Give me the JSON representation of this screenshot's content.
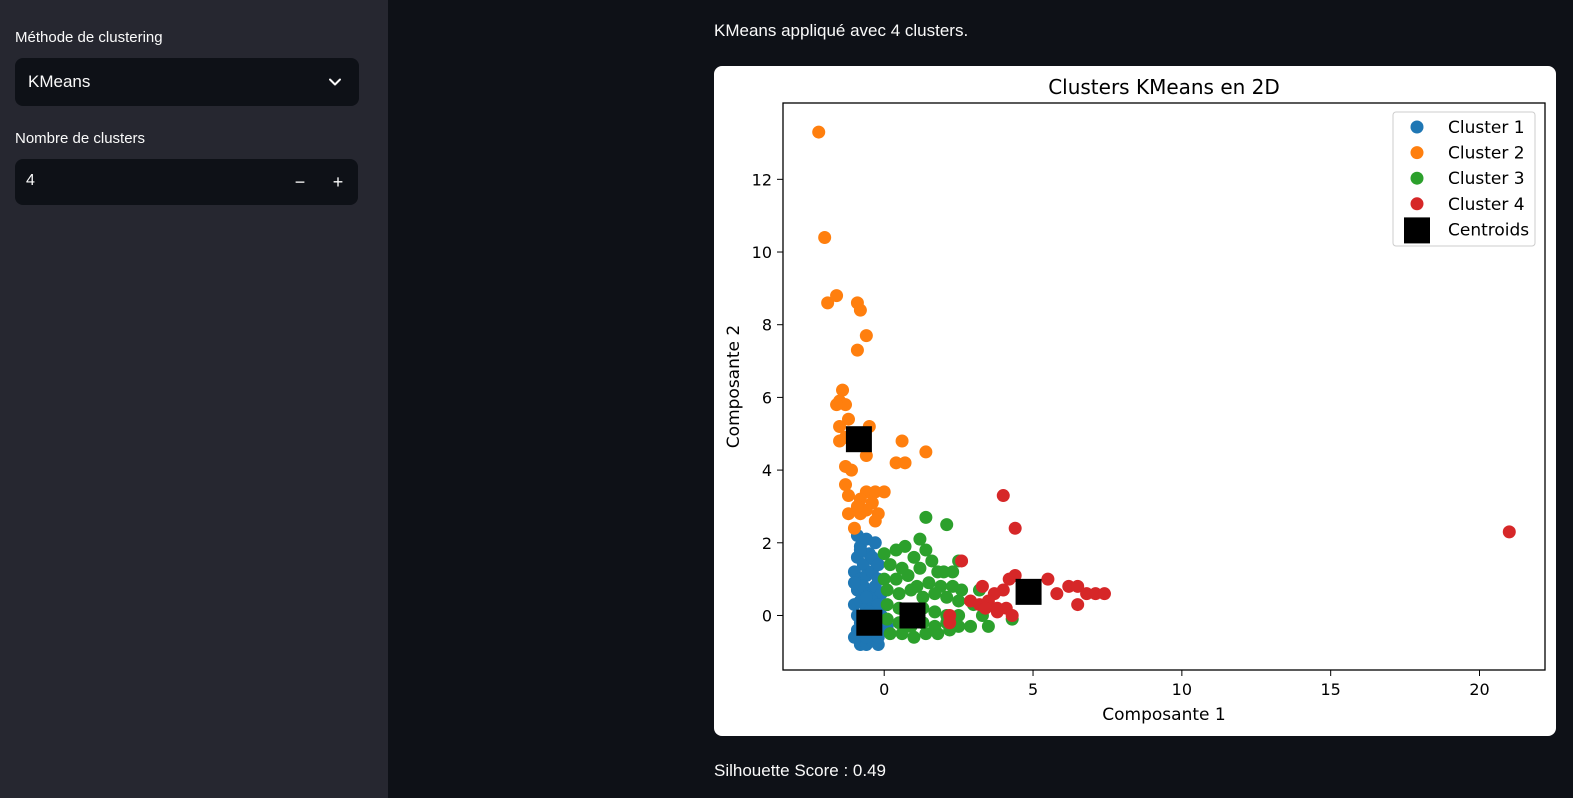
{
  "sidebar": {
    "method_label": "Méthode de clustering",
    "method_value": "KMeans",
    "clusters_label": "Nombre de clusters",
    "clusters_value": "4",
    "minus": "−",
    "plus": "+"
  },
  "main": {
    "info": "KMeans appliqué avec 4 clusters.",
    "silhouette": "Silhouette Score : 0.49"
  },
  "colors": {
    "Cluster 1": "#1f77b4",
    "Cluster 2": "#ff7f0e",
    "Cluster 3": "#2ca02c",
    "Cluster 4": "#d62728",
    "Centroids": "#000000"
  },
  "chart_data": {
    "type": "scatter",
    "title": "Clusters KMeans en 2D",
    "xlabel": "Composante 1",
    "ylabel": "Composante 2",
    "xlim": [
      -3.4,
      22.2
    ],
    "ylim": [
      -1.5,
      14.1
    ],
    "xticks": [
      0,
      5,
      10,
      15,
      20
    ],
    "yticks": [
      0,
      2,
      4,
      6,
      8,
      10,
      12
    ],
    "legend_position": "top-right",
    "grid": false,
    "series": [
      {
        "name": "Cluster 1",
        "color": "#1f77b4",
        "points": [
          [
            -0.9,
            2.2
          ],
          [
            -0.8,
            1.9
          ],
          [
            -0.6,
            2.1
          ],
          [
            -0.3,
            2.0
          ],
          [
            -0.9,
            1.6
          ],
          [
            -0.7,
            1.4
          ],
          [
            -0.5,
            1.7
          ],
          [
            -0.3,
            1.5
          ],
          [
            -1.0,
            1.2
          ],
          [
            -0.8,
            1.0
          ],
          [
            -0.6,
            1.1
          ],
          [
            -0.4,
            1.2
          ],
          [
            -0.2,
            1.0
          ],
          [
            -0.9,
            0.7
          ],
          [
            -0.7,
            0.8
          ],
          [
            -0.5,
            0.6
          ],
          [
            -0.3,
            0.8
          ],
          [
            -0.1,
            0.6
          ],
          [
            -1.0,
            0.3
          ],
          [
            -0.8,
            0.4
          ],
          [
            -0.6,
            0.2
          ],
          [
            -0.4,
            0.4
          ],
          [
            -0.2,
            0.3
          ],
          [
            -0.9,
            0.0
          ],
          [
            -0.7,
            -0.1
          ],
          [
            -0.5,
            0.1
          ],
          [
            -0.3,
            -0.1
          ],
          [
            -0.1,
            0.0
          ],
          [
            -0.9,
            -0.4
          ],
          [
            -0.7,
            -0.5
          ],
          [
            -0.5,
            -0.3
          ],
          [
            -0.3,
            -0.5
          ],
          [
            -0.1,
            -0.4
          ],
          [
            -0.8,
            -0.8
          ],
          [
            -0.6,
            -0.8
          ],
          [
            -0.4,
            -0.7
          ],
          [
            -0.2,
            -0.8
          ],
          [
            -1.0,
            -0.6
          ],
          [
            -0.6,
            -0.6
          ],
          [
            -0.2,
            -0.6
          ],
          [
            -0.8,
            1.8
          ],
          [
            -0.4,
            1.6
          ],
          [
            -0.6,
            0.5
          ],
          [
            -0.4,
            -0.2
          ],
          [
            -0.8,
            -0.2
          ],
          [
            -0.2,
            1.4
          ],
          [
            0.1,
            -0.3
          ],
          [
            -1.0,
            0.9
          ]
        ]
      },
      {
        "name": "Cluster 2",
        "color": "#ff7f0e",
        "points": [
          [
            -2.2,
            13.3
          ],
          [
            -2.0,
            10.4
          ],
          [
            -1.9,
            8.6
          ],
          [
            -1.6,
            8.8
          ],
          [
            -0.9,
            8.6
          ],
          [
            -0.8,
            8.4
          ],
          [
            -0.6,
            7.7
          ],
          [
            -0.9,
            7.3
          ],
          [
            -1.4,
            6.2
          ],
          [
            -1.5,
            5.9
          ],
          [
            -1.3,
            5.8
          ],
          [
            -1.6,
            5.8
          ],
          [
            -1.2,
            5.4
          ],
          [
            -1.5,
            5.2
          ],
          [
            -0.5,
            5.2
          ],
          [
            -1.3,
            4.9
          ],
          [
            -1.5,
            4.8
          ],
          [
            0.6,
            4.8
          ],
          [
            -0.6,
            4.4
          ],
          [
            0.4,
            4.2
          ],
          [
            0.7,
            4.2
          ],
          [
            1.4,
            4.5
          ],
          [
            -1.3,
            4.1
          ],
          [
            -1.1,
            4.0
          ],
          [
            -1.3,
            3.6
          ],
          [
            -1.2,
            3.3
          ],
          [
            -0.6,
            3.4
          ],
          [
            -0.3,
            3.4
          ],
          [
            0.0,
            3.4
          ],
          [
            -0.8,
            3.2
          ],
          [
            -0.4,
            3.1
          ],
          [
            -1.2,
            2.8
          ],
          [
            -0.8,
            2.8
          ],
          [
            -0.2,
            2.8
          ],
          [
            -1.0,
            2.4
          ],
          [
            -0.3,
            2.6
          ],
          [
            -0.6,
            2.9
          ],
          [
            -0.9,
            3.0
          ]
        ]
      },
      {
        "name": "Cluster 3",
        "color": "#2ca02c",
        "points": [
          [
            1.4,
            2.7
          ],
          [
            2.1,
            2.5
          ],
          [
            1.2,
            2.1
          ],
          [
            0.0,
            1.7
          ],
          [
            0.4,
            1.8
          ],
          [
            0.7,
            1.9
          ],
          [
            1.4,
            1.8
          ],
          [
            1.0,
            1.6
          ],
          [
            1.6,
            1.5
          ],
          [
            0.2,
            1.4
          ],
          [
            0.6,
            1.3
          ],
          [
            1.2,
            1.3
          ],
          [
            2.0,
            1.2
          ],
          [
            2.3,
            1.2
          ],
          [
            2.5,
            1.5
          ],
          [
            0.0,
            1.0
          ],
          [
            0.4,
            1.0
          ],
          [
            0.8,
            1.1
          ],
          [
            1.5,
            0.9
          ],
          [
            1.9,
            0.8
          ],
          [
            2.3,
            0.8
          ],
          [
            2.6,
            0.7
          ],
          [
            0.1,
            0.7
          ],
          [
            0.5,
            0.6
          ],
          [
            0.9,
            0.7
          ],
          [
            1.3,
            0.5
          ],
          [
            1.7,
            0.6
          ],
          [
            2.1,
            0.5
          ],
          [
            2.5,
            0.4
          ],
          [
            3.0,
            0.3
          ],
          [
            0.1,
            0.3
          ],
          [
            0.5,
            0.2
          ],
          [
            0.9,
            0.1
          ],
          [
            1.3,
            0.2
          ],
          [
            1.7,
            0.1
          ],
          [
            2.1,
            0.0
          ],
          [
            2.5,
            0.0
          ],
          [
            3.3,
            0.0
          ],
          [
            0.1,
            -0.1
          ],
          [
            0.5,
            -0.2
          ],
          [
            0.9,
            -0.3
          ],
          [
            1.3,
            -0.2
          ],
          [
            1.7,
            -0.3
          ],
          [
            2.1,
            -0.2
          ],
          [
            2.5,
            -0.3
          ],
          [
            2.9,
            -0.3
          ],
          [
            3.5,
            -0.3
          ],
          [
            0.2,
            -0.5
          ],
          [
            0.6,
            -0.5
          ],
          [
            1.0,
            -0.6
          ],
          [
            1.4,
            -0.5
          ],
          [
            1.8,
            -0.5
          ],
          [
            2.2,
            -0.4
          ],
          [
            4.3,
            -0.1
          ],
          [
            3.2,
            0.7
          ],
          [
            1.1,
            0.8
          ],
          [
            1.8,
            1.2
          ]
        ]
      },
      {
        "name": "Cluster 4",
        "color": "#d62728",
        "points": [
          [
            21.0,
            2.3
          ],
          [
            4.0,
            3.3
          ],
          [
            4.4,
            2.4
          ],
          [
            2.6,
            1.5
          ],
          [
            3.3,
            0.8
          ],
          [
            4.0,
            0.7
          ],
          [
            4.2,
            1.0
          ],
          [
            4.4,
            1.1
          ],
          [
            5.5,
            1.0
          ],
          [
            5.8,
            0.6
          ],
          [
            6.2,
            0.8
          ],
          [
            6.5,
            0.8
          ],
          [
            6.8,
            0.6
          ],
          [
            7.1,
            0.6
          ],
          [
            7.4,
            0.6
          ],
          [
            6.5,
            0.3
          ],
          [
            3.7,
            0.6
          ],
          [
            2.9,
            0.4
          ],
          [
            3.2,
            0.3
          ],
          [
            3.5,
            0.4
          ],
          [
            3.4,
            0.2
          ],
          [
            3.8,
            0.2
          ],
          [
            4.1,
            0.2
          ],
          [
            4.3,
            0.0
          ],
          [
            2.2,
            0.0
          ],
          [
            2.2,
            -0.2
          ],
          [
            3.8,
            0.1
          ]
        ]
      }
    ],
    "centroids": {
      "name": "Centroids",
      "color": "#000000",
      "points": [
        [
          -0.5,
          -0.2
        ],
        [
          0.95,
          0.0
        ],
        [
          -0.85,
          4.85
        ],
        [
          4.85,
          0.65
        ]
      ]
    }
  }
}
